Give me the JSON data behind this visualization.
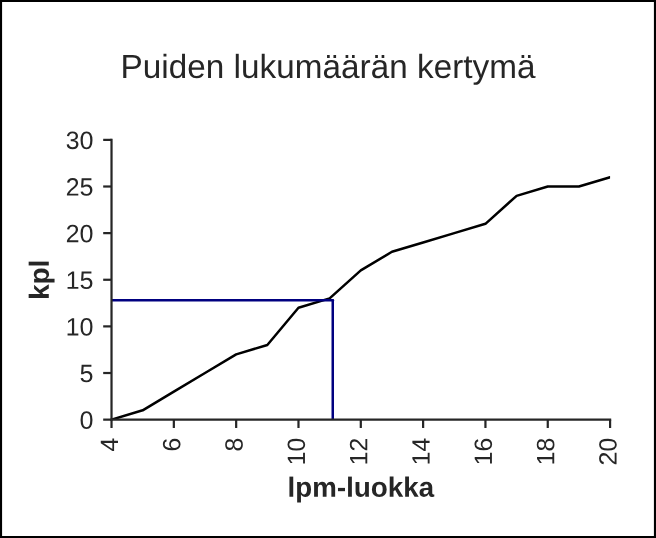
{
  "chart_data": {
    "type": "line",
    "title": "Puiden lukumäärän kertymä",
    "xlabel": "lpm-luokka",
    "ylabel": "kpl",
    "x": [
      4,
      5,
      6,
      7,
      8,
      9,
      10,
      11,
      12,
      13,
      14,
      15,
      16,
      17,
      18,
      19,
      20
    ],
    "series": [
      {
        "color": "#000000",
        "values": [
          0,
          1,
          3,
          5,
          7,
          8,
          12,
          13,
          16,
          18,
          19,
          20,
          21,
          24,
          25,
          25,
          26
        ]
      }
    ],
    "xlim": [
      4,
      20
    ],
    "xticks": [
      4,
      6,
      8,
      10,
      12,
      14,
      16,
      18,
      20
    ],
    "ylim": [
      0,
      30
    ],
    "yticks": [
      0,
      5,
      10,
      15,
      20,
      25,
      30
    ],
    "ref_lines": [
      {
        "axis": "y",
        "value": 12.8,
        "color": "#000080"
      },
      {
        "axis": "x",
        "value": 11.1,
        "color": "#000080"
      }
    ],
    "grid": false,
    "legend": false,
    "marker": "none",
    "line_style": "solid"
  }
}
